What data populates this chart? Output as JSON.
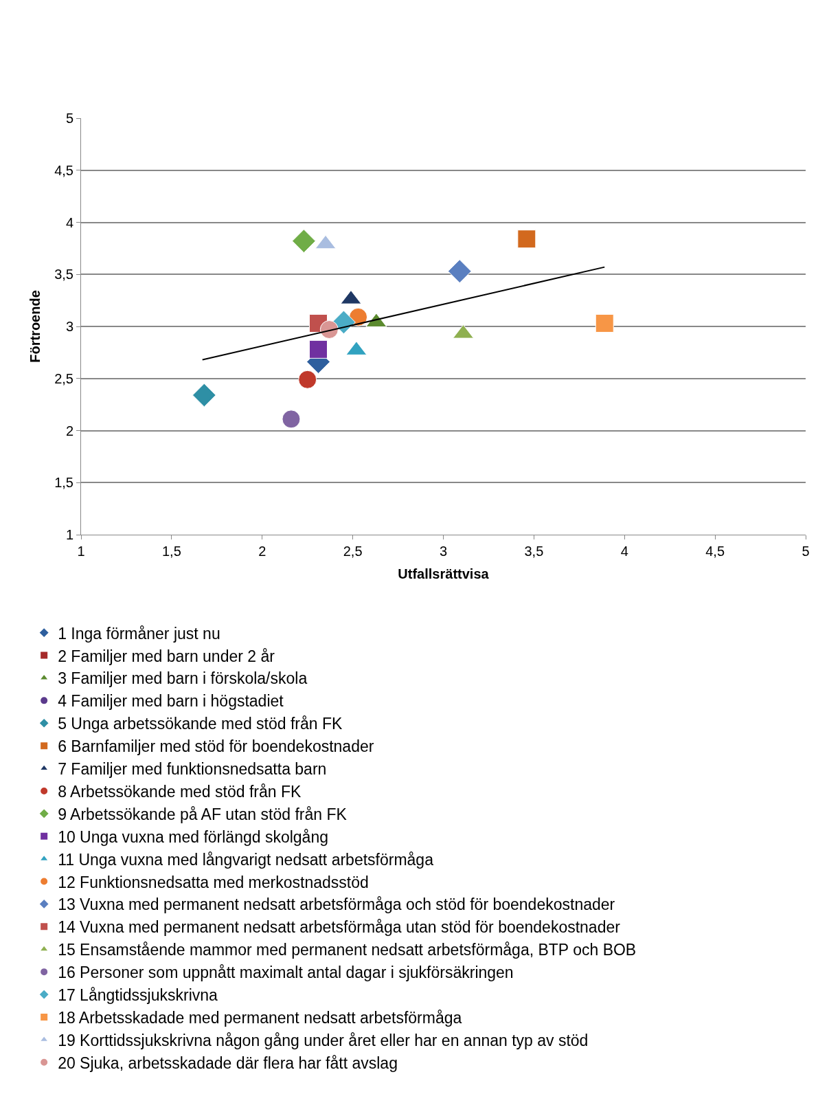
{
  "chart_data": {
    "type": "scatter",
    "xlabel": "Utfallsrättvisa",
    "ylabel": "Förtroende",
    "xlim": [
      1,
      5
    ],
    "ylim": [
      1,
      5
    ],
    "xticks": [
      1,
      {
        "value": 1.5,
        "label": "1,5"
      },
      2,
      {
        "value": 2.5,
        "label": "2,5"
      },
      3,
      {
        "value": 3.5,
        "label": "3,5"
      },
      4,
      {
        "value": 4.5,
        "label": "4,5"
      },
      5
    ],
    "yticks": [
      1,
      {
        "value": 1.5,
        "label": "1,5"
      },
      2,
      {
        "value": 2.5,
        "label": "2,5"
      },
      3,
      {
        "value": 3.5,
        "label": "3,5"
      },
      4,
      {
        "value": 4.5,
        "label": "4,5"
      },
      5
    ],
    "grid": "y",
    "legend": "bottom",
    "series": [
      {
        "name": "1 Inga förmåner just nu",
        "color": "#2e5f9e",
        "marker": "diamond",
        "x": [
          2.31
        ],
        "values": [
          2.66
        ]
      },
      {
        "name": "2 Familjer med barn under 2 år",
        "color": "#a52a2a",
        "marker": "square",
        "x": [
          null
        ],
        "values": [
          null
        ]
      },
      {
        "name": "3 Familjer med barn i förskola/skola",
        "color": "#5b8a2e",
        "marker": "triangle",
        "x": [
          2.63
        ],
        "values": [
          3.04
        ]
      },
      {
        "name": "4 Familjer med barn i högstadiet",
        "color": "#5b3a8c",
        "marker": "circle",
        "x": [
          null
        ],
        "values": [
          null
        ]
      },
      {
        "name": "5 Unga arbetssökande med stöd från FK",
        "color": "#2e8fa5",
        "marker": "diamond",
        "x": [
          1.68
        ],
        "values": [
          2.34
        ]
      },
      {
        "name": "6 Barnfamiljer med stöd för boendekostnader",
        "color": "#d2691e",
        "marker": "square",
        "x": [
          3.46
        ],
        "values": [
          3.84
        ]
      },
      {
        "name": "7 Familjer med funktionsnedsatta barn",
        "color": "#1f3864",
        "marker": "triangle",
        "x": [
          2.49
        ],
        "values": [
          3.26
        ]
      },
      {
        "name": "8 Arbetssökande med stöd från FK",
        "color": "#c0392b",
        "marker": "circle",
        "x": [
          2.25
        ],
        "values": [
          2.49
        ]
      },
      {
        "name": "9 Arbetssökande på AF utan stöd från FK",
        "color": "#70ad47",
        "marker": "diamond",
        "x": [
          2.23
        ],
        "values": [
          3.82
        ]
      },
      {
        "name": "10 Unga vuxna med förlängd skolgång",
        "color": "#7030a0",
        "marker": "square",
        "x": [
          2.31
        ],
        "values": [
          2.78
        ]
      },
      {
        "name": "11 Unga vuxna med långvarigt nedsatt arbetsförmåga",
        "color": "#31a2c0",
        "marker": "triangle",
        "x": [
          2.52
        ],
        "values": [
          2.77
        ]
      },
      {
        "name": "12 Funktionsnedsatta med merkostnadsstöd",
        "color": "#ed7d31",
        "marker": "circle",
        "x": [
          2.53
        ],
        "values": [
          3.09
        ]
      },
      {
        "name": "13 Vuxna med permanent nedsatt arbetsförmåga och stöd för boendekostnader",
        "color": "#5a7fc0",
        "marker": "diamond",
        "x": [
          3.09
        ],
        "values": [
          3.53
        ]
      },
      {
        "name": "14 Vuxna med permanent nedsatt arbetsförmåga utan stöd för boendekostnader",
        "color": "#c0504d",
        "marker": "square",
        "x": [
          2.31
        ],
        "values": [
          3.03
        ]
      },
      {
        "name": "15 Ensamstående mammor med permanent nedsatt arbetsförmåga, BTP och BOB",
        "color": "#8fb050",
        "marker": "triangle",
        "x": [
          3.11
        ],
        "values": [
          2.93
        ]
      },
      {
        "name": "16 Personer som uppnått maximalt antal dagar i sjukförsäkringen",
        "color": "#8064a2",
        "marker": "circle",
        "x": [
          2.16
        ],
        "values": [
          2.11
        ]
      },
      {
        "name": "17 Långtidssjukskrivna",
        "color": "#4bacc6",
        "marker": "diamond",
        "x": [
          2.45
        ],
        "values": [
          3.04
        ]
      },
      {
        "name": "18 Arbetsskadade med permanent nedsatt arbetsförmåga",
        "color": "#f79646",
        "marker": "square",
        "x": [
          3.89
        ],
        "values": [
          3.03
        ]
      },
      {
        "name": "19 Korttidssjukskrivna någon gång under året eller har en annan typ av stöd",
        "color": "#a9bde0",
        "marker": "triangle",
        "x": [
          2.35
        ],
        "values": [
          3.79
        ]
      },
      {
        "name": "20 Sjuka, arbetsskadade där flera har fått avslag",
        "color": "#d99694",
        "marker": "circle",
        "x": [
          2.37
        ],
        "values": [
          2.97
        ]
      },
      {
        "type": "line",
        "color": "#000000",
        "marker": "none",
        "x": [
          1.67,
          3.89
        ],
        "values": [
          2.68,
          3.57
        ]
      }
    ]
  }
}
